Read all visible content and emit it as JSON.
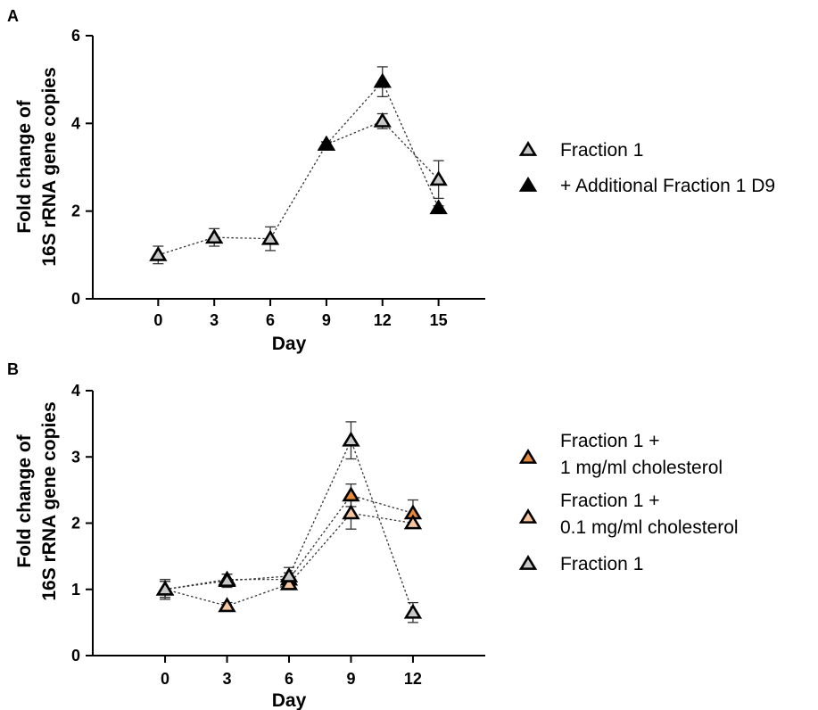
{
  "chart_data": [
    {
      "panel": "A",
      "type": "line",
      "xlabel": "Day",
      "ylabel": [
        "Fold change of",
        "16S rRNA gene copies"
      ],
      "x_ticks": [
        0,
        3,
        6,
        9,
        12,
        15
      ],
      "xlim": [
        -3.5,
        17.5
      ],
      "ylim": [
        0,
        6
      ],
      "y_ticks": [
        0,
        2,
        4,
        6
      ],
      "grid": false,
      "legend_position": "right",
      "series": [
        {
          "name": "Fraction 1",
          "marker": "open-triangle",
          "fill": "#c8c8c8",
          "x": [
            0,
            3,
            6,
            9,
            12,
            15
          ],
          "y": [
            1.0,
            1.4,
            1.37,
            3.52,
            4.05,
            2.72
          ],
          "error": [
            0.2,
            0.2,
            0.27,
            0.06,
            0.17,
            0.43
          ]
        },
        {
          "name": "+ Additional Fraction 1  D9",
          "marker": "filled-triangle",
          "fill": "#000000",
          "x": [
            9,
            12,
            15
          ],
          "y": [
            3.52,
            4.95,
            2.07
          ],
          "error": [
            0.06,
            0.34,
            0.05
          ]
        }
      ]
    },
    {
      "panel": "B",
      "type": "line",
      "xlabel": "Day",
      "ylabel": [
        "Fold change of",
        "16S rRNA gene copies"
      ],
      "x_ticks": [
        0,
        3,
        6,
        9,
        12
      ],
      "xlim": [
        -3.5,
        15.5
      ],
      "ylim": [
        0,
        4
      ],
      "y_ticks": [
        0,
        1,
        2,
        3,
        4
      ],
      "grid": false,
      "legend_position": "right",
      "series": [
        {
          "name": [
            "Fraction 1 +",
            "1 mg/ml cholesterol"
          ],
          "marker": "filled-triangle",
          "fill": "#e88a3c",
          "x": [
            0,
            3,
            6,
            9,
            12
          ],
          "y": [
            1.0,
            1.15,
            1.15,
            2.42,
            2.15
          ],
          "error": [
            0.12,
            0.08,
            0.1,
            0.17,
            0.2
          ]
        },
        {
          "name": [
            "Fraction 1 +",
            "0.1 mg/ml cholesterol"
          ],
          "marker": "filled-triangle",
          "fill": "#f6c6a0",
          "x": [
            0,
            3,
            6,
            9,
            12
          ],
          "y": [
            1.0,
            0.75,
            1.08,
            2.15,
            2.0
          ],
          "error": [
            0.12,
            0.05,
            0.07,
            0.24,
            0.07
          ]
        },
        {
          "name": "Fraction 1",
          "marker": "open-triangle",
          "fill": "#c8c8c8",
          "x": [
            0,
            3,
            6,
            9,
            12
          ],
          "y": [
            1.0,
            1.13,
            1.2,
            3.25,
            0.65
          ],
          "error": [
            0.15,
            0.1,
            0.13,
            0.28,
            0.15
          ]
        }
      ]
    }
  ]
}
